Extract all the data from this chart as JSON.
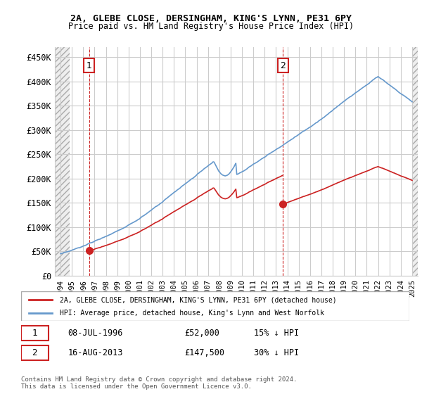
{
  "title1": "2A, GLEBE CLOSE, DERSINGHAM, KING'S LYNN, PE31 6PY",
  "title2": "Price paid vs. HM Land Registry's House Price Index (HPI)",
  "ylabel_values": [
    "£0",
    "£50K",
    "£100K",
    "£150K",
    "£200K",
    "£250K",
    "£300K",
    "£350K",
    "£400K",
    "£450K"
  ],
  "ylim": [
    0,
    470000
  ],
  "xlim_start": 1993.5,
  "xlim_end": 2025.5,
  "hpi_color": "#6699cc",
  "price_color": "#cc2222",
  "sale1_date": 1996.52,
  "sale1_price": 52000,
  "sale2_date": 2013.62,
  "sale2_price": 147500,
  "legend1": "2A, GLEBE CLOSE, DERSINGHAM, KING'S LYNN, PE31 6PY (detached house)",
  "legend2": "HPI: Average price, detached house, King's Lynn and West Norfolk",
  "table1_num": "1",
  "table1_date": "08-JUL-1996",
  "table1_price": "£52,000",
  "table1_hpi": "15% ↓ HPI",
  "table2_num": "2",
  "table2_date": "16-AUG-2013",
  "table2_price": "£147,500",
  "table2_hpi": "30% ↓ HPI",
  "footnote": "Contains HM Land Registry data © Crown copyright and database right 2024.\nThis data is licensed under the Open Government Licence v3.0.",
  "bg_hatch_color": "#e8e8e8",
  "grid_color": "#cccccc"
}
